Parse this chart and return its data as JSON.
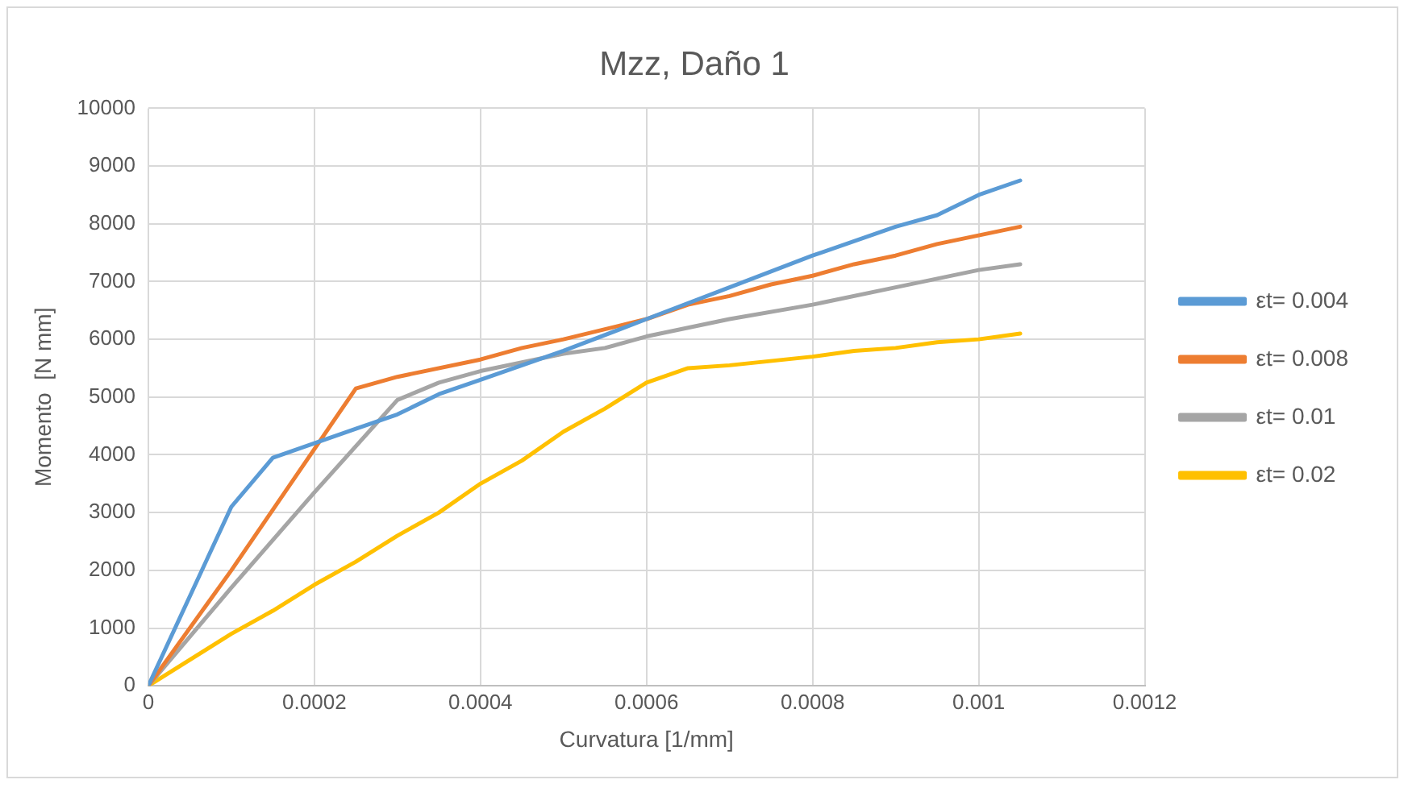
{
  "chart_data": {
    "type": "line",
    "title": "Mzz, Daño 1",
    "xlabel": "Curvatura [1/mm]",
    "ylabel": "Momento  [N mm]",
    "xlim": [
      0,
      0.0012
    ],
    "xticks": [
      0,
      0.0002,
      0.0004,
      0.0006,
      0.0008,
      0.001,
      0.0012
    ],
    "ylim": [
      0,
      10000
    ],
    "yticks": [
      0,
      1000,
      2000,
      3000,
      4000,
      5000,
      6000,
      7000,
      8000,
      9000,
      10000
    ],
    "grid": true,
    "legend": "right",
    "marker": "none",
    "line_style": "solid",
    "series": [
      {
        "name": "εt= 0.004",
        "color": "#5b9bd5",
        "x": [
          0,
          0.0001,
          0.00015,
          0.0002,
          0.00025,
          0.0003,
          0.00035,
          0.0004,
          0.0005,
          0.0006,
          0.0007,
          0.0008,
          0.0009,
          0.00095,
          0.001,
          0.00105
        ],
        "values": [
          0,
          3100,
          3950,
          4200,
          4450,
          4700,
          5050,
          5300,
          5800,
          6350,
          6900,
          7450,
          7950,
          8150,
          8500,
          8750
        ]
      },
      {
        "name": "εt= 0.008",
        "color": "#ed7d31",
        "x": [
          0,
          0.0001,
          0.0002,
          0.00025,
          0.0003,
          0.0004,
          0.00045,
          0.0005,
          0.0006,
          0.00065,
          0.0007,
          0.00075,
          0.0008,
          0.00085,
          0.0009,
          0.00095,
          0.001,
          0.00105
        ],
        "values": [
          0,
          2000,
          4100,
          5150,
          5350,
          5650,
          5850,
          6000,
          6350,
          6600,
          6750,
          6950,
          7100,
          7300,
          7450,
          7650,
          7800,
          7950
        ]
      },
      {
        "name": "εt= 0.01",
        "color": "#a5a5a5",
        "x": [
          0,
          0.0001,
          0.0002,
          0.0003,
          0.00035,
          0.0004,
          0.0005,
          0.00055,
          0.0006,
          0.0007,
          0.0008,
          0.0009,
          0.001,
          0.00105
        ],
        "values": [
          0,
          1700,
          3350,
          4950,
          5250,
          5450,
          5750,
          5850,
          6050,
          6350,
          6600,
          6900,
          7200,
          7300
        ]
      },
      {
        "name": "εt= 0.02",
        "color": "#ffc000",
        "x": [
          0,
          0.0001,
          0.00015,
          0.0002,
          0.00025,
          0.0003,
          0.00035,
          0.0004,
          0.00045,
          0.0005,
          0.00055,
          0.0006,
          0.00065,
          0.0007,
          0.0008,
          0.00085,
          0.0009,
          0.00095,
          0.001,
          0.00105
        ],
        "values": [
          0,
          900,
          1300,
          1750,
          2150,
          2600,
          3000,
          3500,
          3900,
          4400,
          4800,
          5250,
          5500,
          5550,
          5700,
          5800,
          5850,
          5950,
          6000,
          6100
        ]
      }
    ]
  }
}
